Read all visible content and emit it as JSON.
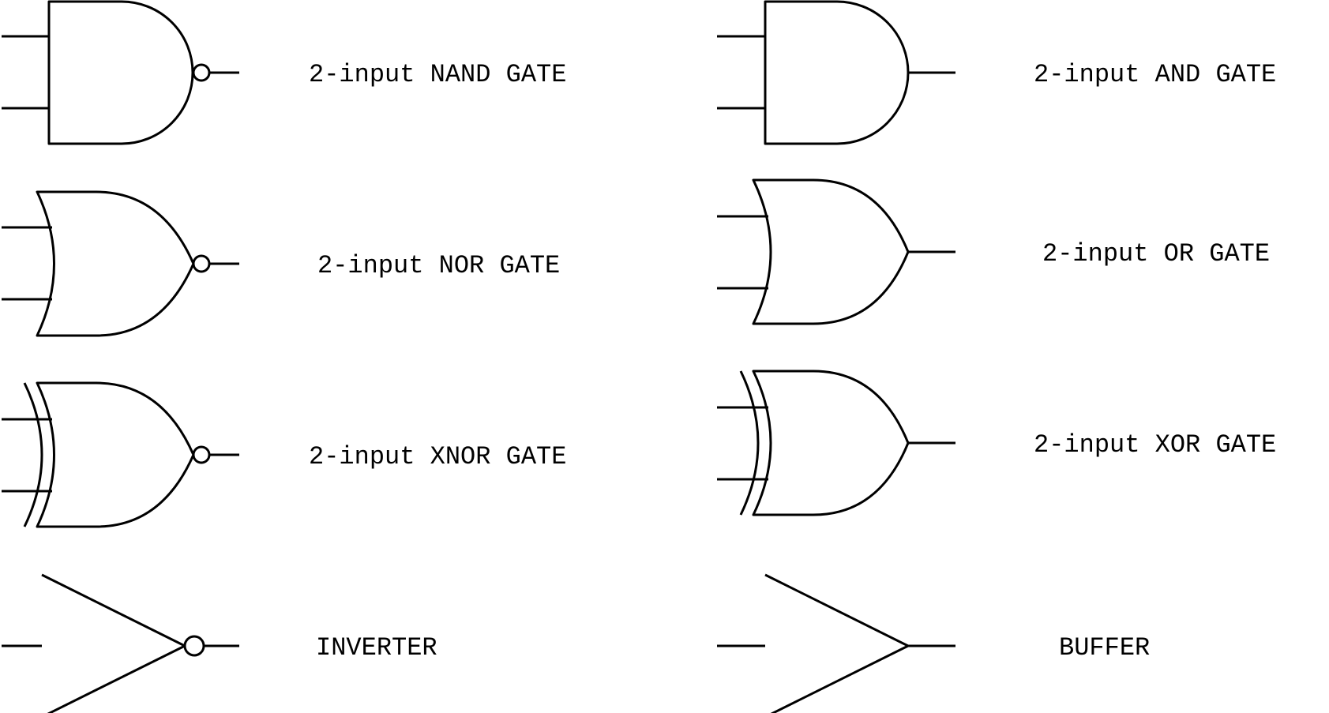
{
  "gates": {
    "nand": {
      "label": "2-input NAND GATE"
    },
    "and": {
      "label": "2-input AND GATE"
    },
    "nor": {
      "label": "2-input NOR GATE"
    },
    "or": {
      "label": "2-input OR GATE"
    },
    "xnor": {
      "label": "2-input XNOR GATE"
    },
    "xor": {
      "label": "2-input XOR GATE"
    },
    "inverter": {
      "label": "INVERTER"
    },
    "buffer": {
      "label": "BUFFER"
    }
  },
  "colors": {
    "stroke": "#000000",
    "background": "#ffffff"
  }
}
